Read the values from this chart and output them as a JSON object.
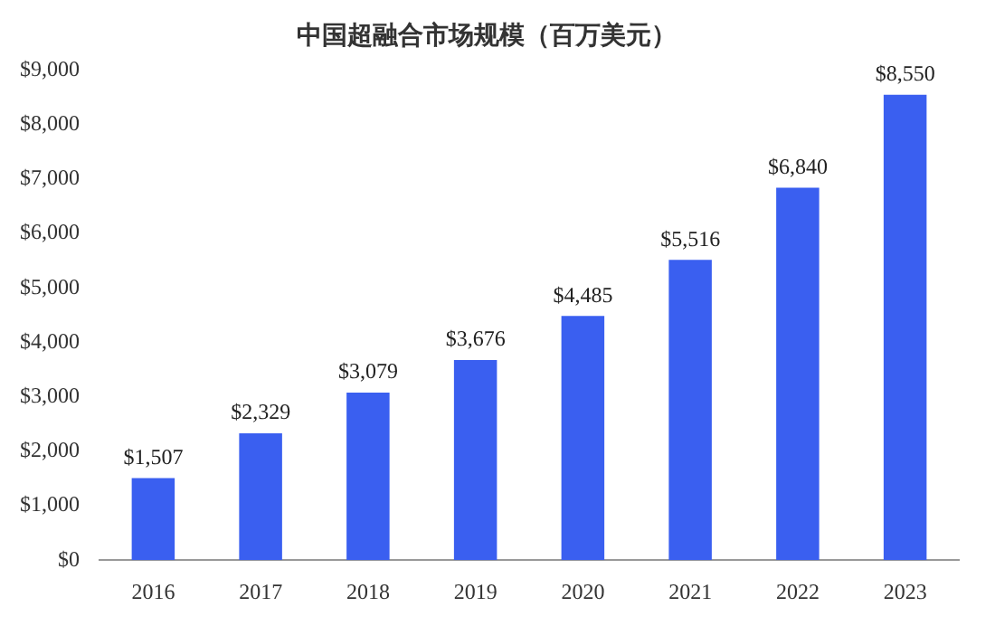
{
  "chart_data": {
    "type": "bar",
    "title": "中国超融合市场规模（百万美元）",
    "categories": [
      "2016",
      "2017",
      "2018",
      "2019",
      "2020",
      "2021",
      "2022",
      "2023"
    ],
    "values": [
      1507,
      2329,
      3079,
      3676,
      4485,
      5516,
      6840,
      8550
    ],
    "value_labels": [
      "$1,507",
      "$2,329",
      "$3,079",
      "$3,676",
      "$4,485",
      "$5,516",
      "$6,840",
      "$8,550"
    ],
    "color": "#3a5ff0",
    "ylim": [
      0,
      9000
    ],
    "yticks": [
      {
        "value": 0,
        "label": "$0"
      },
      {
        "value": 1000,
        "label": "$1,000"
      },
      {
        "value": 2000,
        "label": "$2,000"
      },
      {
        "value": 3000,
        "label": "$3,000"
      },
      {
        "value": 4000,
        "label": "$4,000"
      },
      {
        "value": 5000,
        "label": "$5,000"
      },
      {
        "value": 6000,
        "label": "$6,000"
      },
      {
        "value": 7000,
        "label": "$7,000"
      },
      {
        "value": 8000,
        "label": "$8,000"
      },
      {
        "value": 9000,
        "label": "$9,000"
      }
    ],
    "grid": false,
    "legend": false
  }
}
